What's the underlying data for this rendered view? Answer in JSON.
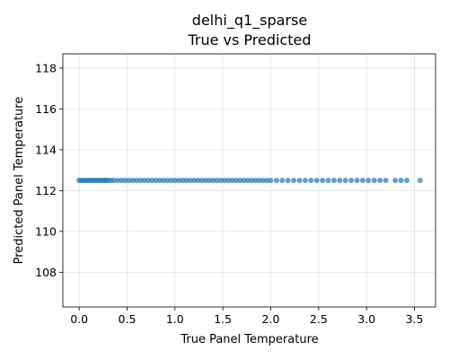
{
  "chart_data": {
    "type": "scatter",
    "title_line1": "delhi_q1_sparse",
    "title_line2": "True vs Predicted",
    "xlabel": "True Panel Temperature",
    "ylabel": "Predicted Panel Temperature",
    "xlim": [
      -0.17,
      3.72
    ],
    "ylim": [
      106.3,
      118.7
    ],
    "xticks": [
      0.0,
      0.5,
      1.0,
      1.5,
      2.0,
      2.5,
      3.0,
      3.5
    ],
    "xtick_labels": [
      "0.0",
      "0.5",
      "1.0",
      "1.5",
      "2.0",
      "2.5",
      "3.0",
      "3.5"
    ],
    "yticks": [
      108,
      110,
      112,
      114,
      116,
      118
    ],
    "ytick_labels": [
      "108",
      "110",
      "112",
      "114",
      "116",
      "118"
    ],
    "grid": true,
    "point_color": "#1f77b4",
    "series": [
      {
        "x": [
          0.0,
          0.02,
          0.04,
          0.06,
          0.08,
          0.1,
          0.12,
          0.14,
          0.16,
          0.18,
          0.2,
          0.22,
          0.24,
          0.26,
          0.28,
          0.3,
          0.33,
          0.36,
          0.4,
          0.44,
          0.48,
          0.52,
          0.56,
          0.6,
          0.64,
          0.68,
          0.72,
          0.76,
          0.8,
          0.84,
          0.88,
          0.92,
          0.96,
          1.0,
          1.04,
          1.08,
          1.12,
          1.16,
          1.2,
          1.24,
          1.28,
          1.32,
          1.36,
          1.4,
          1.44,
          1.48,
          1.52,
          1.56,
          1.6,
          1.64,
          1.68,
          1.72,
          1.76,
          1.8,
          1.84,
          1.88,
          1.92,
          1.96,
          2.0,
          2.06,
          2.12,
          2.18,
          2.24,
          2.3,
          2.36,
          2.42,
          2.48,
          2.54,
          2.6,
          2.66,
          2.72,
          2.78,
          2.84,
          2.9,
          2.96,
          3.02,
          3.08,
          3.14,
          3.2,
          3.3,
          3.36,
          3.42,
          3.56
        ],
        "y": [
          112.5,
          112.5,
          112.5,
          112.5,
          112.5,
          112.5,
          112.5,
          112.5,
          112.5,
          112.5,
          112.5,
          112.5,
          112.5,
          112.5,
          112.5,
          112.5,
          112.5,
          112.5,
          112.5,
          112.5,
          112.5,
          112.5,
          112.5,
          112.5,
          112.5,
          112.5,
          112.5,
          112.5,
          112.5,
          112.5,
          112.5,
          112.5,
          112.5,
          112.5,
          112.5,
          112.5,
          112.5,
          112.5,
          112.5,
          112.5,
          112.5,
          112.5,
          112.5,
          112.5,
          112.5,
          112.5,
          112.5,
          112.5,
          112.5,
          112.5,
          112.5,
          112.5,
          112.5,
          112.5,
          112.5,
          112.5,
          112.5,
          112.5,
          112.5,
          112.5,
          112.5,
          112.5,
          112.5,
          112.5,
          112.5,
          112.5,
          112.5,
          112.5,
          112.5,
          112.5,
          112.5,
          112.5,
          112.5,
          112.5,
          112.5,
          112.5,
          112.5,
          112.5,
          112.5,
          112.5,
          112.5,
          112.5,
          112.5
        ]
      }
    ]
  }
}
